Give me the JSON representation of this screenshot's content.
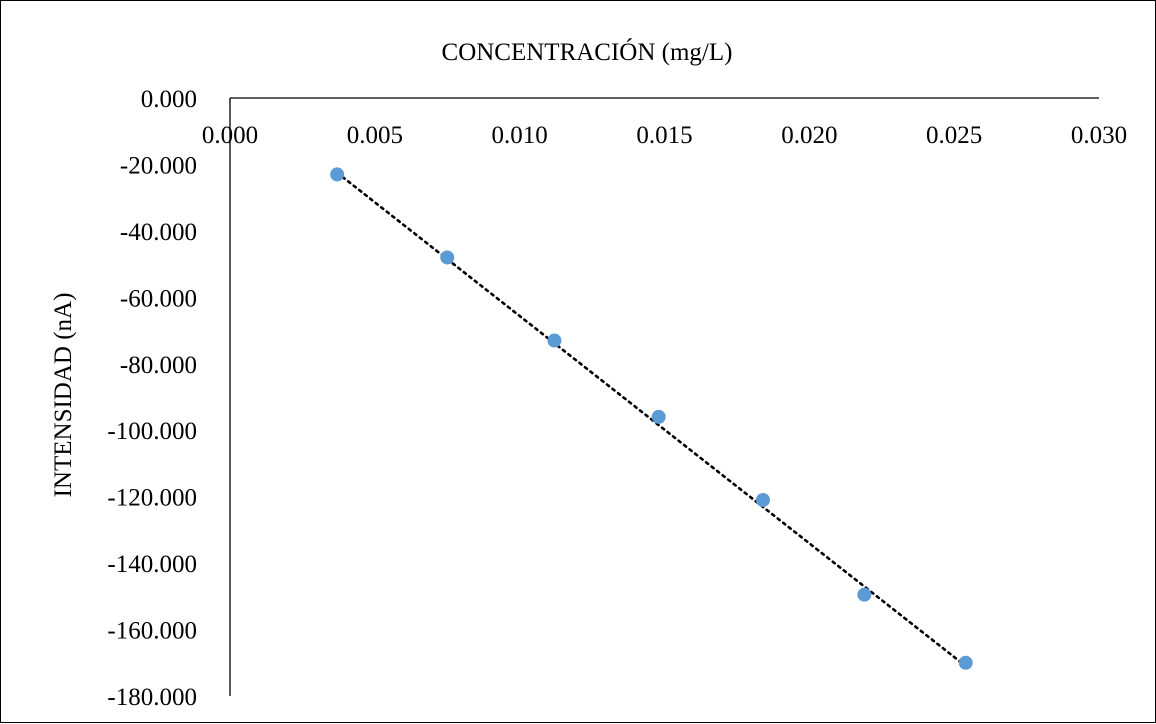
{
  "chart_data": {
    "type": "scatter",
    "title": "",
    "xlabel": "CONCENTRACIÓN (mg/L)",
    "ylabel": "INTENSIDAD (nA)",
    "xlim": [
      0,
      0.03
    ],
    "ylim": [
      -180,
      0
    ],
    "x_ticks": [
      "0.000",
      "0.005",
      "0.010",
      "0.015",
      "0.020",
      "0.025",
      "0.030"
    ],
    "y_ticks": [
      "0.000",
      "-20.000",
      "-40.000",
      "-60.000",
      "-80.000",
      "-100.000",
      "-120.000",
      "-140.000",
      "-160.000",
      "-180.000"
    ],
    "x_axis_position": "top",
    "grid": false,
    "legend": "none",
    "series": [
      {
        "x": [
          0.0037,
          0.0075,
          0.0112,
          0.0148,
          0.0184,
          0.0219,
          0.0254
        ],
        "y": [
          -23,
          -48,
          -73,
          -96,
          -121,
          -149.5,
          -170
        ],
        "marker_color": "#5B9BD5"
      }
    ],
    "trendline": {
      "style": "dotted",
      "color": "#000000",
      "x": [
        0.0037,
        0.0254
      ],
      "y": [
        -22.5,
        -171
      ]
    }
  }
}
